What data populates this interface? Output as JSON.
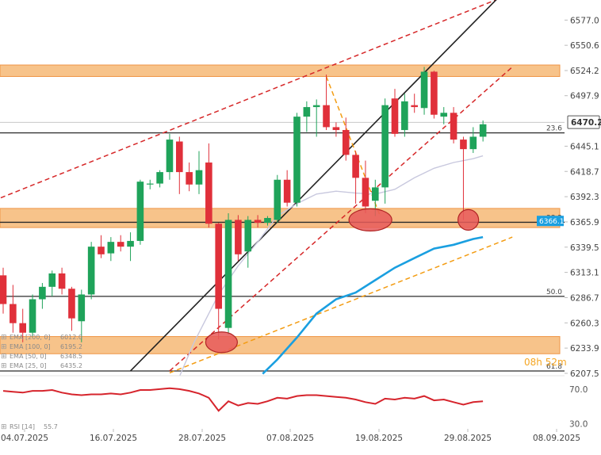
{
  "chart_data": {
    "type": "candlestick",
    "title": "",
    "price_axis": {
      "ticks": [
        "6577.0",
        "6550.6",
        "6524.2",
        "6497.9",
        "6445.1",
        "6418.7",
        "6392.3",
        "6365.9",
        "6339.5",
        "6313.1",
        "6286.7",
        "6260.3",
        "6233.9",
        "6207.5"
      ],
      "last_price": "6470.2",
      "range": [
        6205,
        6598
      ]
    },
    "date_axis": {
      "ticks": [
        "04.07.2025",
        "16.07.2025",
        "28.07.2025",
        "07.08.2025",
        "19.08.2025",
        "29.08.2025",
        "08.09.2025"
      ]
    },
    "candles": [
      {
        "o": 6310,
        "h": 6318,
        "l": 6270,
        "c": 6280
      },
      {
        "o": 6280,
        "h": 6300,
        "l": 6250,
        "c": 6260
      },
      {
        "o": 6260,
        "h": 6275,
        "l": 6240,
        "c": 6250
      },
      {
        "o": 6250,
        "h": 6290,
        "l": 6245,
        "c": 6285
      },
      {
        "o": 6285,
        "h": 6302,
        "l": 6275,
        "c": 6298
      },
      {
        "o": 6298,
        "h": 6315,
        "l": 6288,
        "c": 6312
      },
      {
        "o": 6312,
        "h": 6318,
        "l": 6290,
        "c": 6296
      },
      {
        "o": 6296,
        "h": 6298,
        "l": 6252,
        "c": 6265
      },
      {
        "o": 6262,
        "h": 6295,
        "l": 6240,
        "c": 6290
      },
      {
        "o": 6290,
        "h": 6345,
        "l": 6285,
        "c": 6340
      },
      {
        "o": 6340,
        "h": 6352,
        "l": 6328,
        "c": 6332
      },
      {
        "o": 6333,
        "h": 6350,
        "l": 6325,
        "c": 6345
      },
      {
        "o": 6345,
        "h": 6352,
        "l": 6335,
        "c": 6340
      },
      {
        "o": 6340,
        "h": 6355,
        "l": 6325,
        "c": 6346
      },
      {
        "o": 6346,
        "h": 6410,
        "l": 6342,
        "c": 6408
      },
      {
        "o": 6405,
        "h": 6410,
        "l": 6400,
        "c": 6406
      },
      {
        "o": 6406,
        "h": 6420,
        "l": 6402,
        "c": 6418
      },
      {
        "o": 6418,
        "h": 6458,
        "l": 6410,
        "c": 6452
      },
      {
        "o": 6450,
        "h": 6455,
        "l": 6395,
        "c": 6418
      },
      {
        "o": 6418,
        "h": 6428,
        "l": 6398,
        "c": 6405
      },
      {
        "o": 6405,
        "h": 6440,
        "l": 6395,
        "c": 6420
      },
      {
        "o": 6428,
        "h": 6448,
        "l": 6360,
        "c": 6364
      },
      {
        "o": 6364,
        "h": 6365,
        "l": 6243,
        "c": 6275
      },
      {
        "o": 6255,
        "h": 6375,
        "l": 6248,
        "c": 6368
      },
      {
        "o": 6368,
        "h": 6373,
        "l": 6325,
        "c": 6332
      },
      {
        "o": 6335,
        "h": 6372,
        "l": 6318,
        "c": 6368
      },
      {
        "o": 6368,
        "h": 6373,
        "l": 6360,
        "c": 6365
      },
      {
        "o": 6365,
        "h": 6372,
        "l": 6362,
        "c": 6370
      },
      {
        "o": 6368,
        "h": 6415,
        "l": 6365,
        "c": 6410
      },
      {
        "o": 6410,
        "h": 6420,
        "l": 6382,
        "c": 6386
      },
      {
        "o": 6386,
        "h": 6480,
        "l": 6382,
        "c": 6476
      },
      {
        "o": 6476,
        "h": 6492,
        "l": 6460,
        "c": 6486
      },
      {
        "o": 6486,
        "h": 6494,
        "l": 6455,
        "c": 6488
      },
      {
        "o": 6488,
        "h": 6520,
        "l": 6462,
        "c": 6465
      },
      {
        "o": 6465,
        "h": 6470,
        "l": 6455,
        "c": 6462
      },
      {
        "o": 6462,
        "h": 6475,
        "l": 6430,
        "c": 6436
      },
      {
        "o": 6436,
        "h": 6440,
        "l": 6385,
        "c": 6412
      },
      {
        "o": 6412,
        "h": 6430,
        "l": 6375,
        "c": 6382
      },
      {
        "o": 6388,
        "h": 6410,
        "l": 6372,
        "c": 6402
      },
      {
        "o": 6402,
        "h": 6495,
        "l": 6385,
        "c": 6488
      },
      {
        "o": 6495,
        "h": 6505,
        "l": 6455,
        "c": 6458
      },
      {
        "o": 6462,
        "h": 6500,
        "l": 6455,
        "c": 6492
      },
      {
        "o": 6488,
        "h": 6500,
        "l": 6480,
        "c": 6486
      },
      {
        "o": 6485,
        "h": 6528,
        "l": 6478,
        "c": 6523
      },
      {
        "o": 6523,
        "h": 6524,
        "l": 6474,
        "c": 6478
      },
      {
        "o": 6476,
        "h": 6486,
        "l": 6468,
        "c": 6480
      },
      {
        "o": 6480,
        "h": 6486,
        "l": 6448,
        "c": 6452
      },
      {
        "o": 6452,
        "h": 6455,
        "l": 6368,
        "c": 6442
      },
      {
        "o": 6442,
        "h": 6465,
        "l": 6438,
        "c": 6455
      },
      {
        "o": 6455,
        "h": 6472,
        "l": 6450,
        "c": 6468
      }
    ],
    "zones": [
      {
        "from": 6518,
        "to": 6530
      },
      {
        "from": 6360,
        "to": 6380
      },
      {
        "from": 6228,
        "to": 6246
      }
    ],
    "horizontal_levels": [
      {
        "price": 6470,
        "label": ""
      },
      {
        "price": 6459,
        "label": "23.6"
      },
      {
        "price": 6365.5,
        "label": "38.2"
      },
      {
        "price": 6288,
        "label": "50.0"
      },
      {
        "price": 6210,
        "label": "61.8"
      }
    ],
    "level_price_tag": "6366.1",
    "corner_label": "08h 52m",
    "ema": [
      {
        "name": "EMA [200, 0]",
        "value": "6012.0",
        "color": "#c3c3dc"
      },
      {
        "name": "EMA [100, 0]",
        "value": "6195.2",
        "color": "#d7d7e4"
      },
      {
        "name": "EMA [50, 0]",
        "value": "6348.5",
        "color": "#1a9fe0"
      },
      {
        "name": "EMA [25, 0]",
        "value": "6435.2",
        "color": "#c6c6dc"
      }
    ],
    "ema_lines": {
      "light": [
        [
          17,
          6180
        ],
        [
          19.5,
          6240
        ],
        [
          22,
          6290
        ],
        [
          24,
          6320
        ],
        [
          26,
          6345
        ],
        [
          28,
          6372
        ],
        [
          30,
          6385
        ],
        [
          32,
          6395
        ],
        [
          34,
          6398
        ],
        [
          36,
          6396
        ],
        [
          38,
          6395
        ],
        [
          40,
          6400
        ],
        [
          42,
          6412
        ],
        [
          44,
          6422
        ],
        [
          46,
          6428
        ],
        [
          48,
          6432
        ],
        [
          49,
          6435
        ]
      ],
      "blue": [
        [
          26.5,
          6207
        ],
        [
          28,
          6222
        ],
        [
          30,
          6245
        ],
        [
          32,
          6270
        ],
        [
          34,
          6285
        ],
        [
          36,
          6292
        ],
        [
          38,
          6305
        ],
        [
          40,
          6318
        ],
        [
          42,
          6328
        ],
        [
          44,
          6338
        ],
        [
          46,
          6342
        ],
        [
          48,
          6348
        ],
        [
          49,
          6350
        ]
      ]
    },
    "trendlines": [
      {
        "style": "dashed",
        "color": "#d62728",
        "from": [
          -1,
          6388
        ],
        "to": [
          52,
          6605
        ]
      },
      {
        "style": "solid",
        "color": "#222222",
        "from": [
          13,
          6210
        ],
        "to": [
          51,
          6605
        ]
      },
      {
        "style": "dashed",
        "color": "#d62728",
        "from": [
          17,
          6210
        ],
        "to": [
          52,
          6528
        ]
      },
      {
        "style": "dashed",
        "color": "#f39c12",
        "from": [
          17,
          6208
        ],
        "to": [
          52,
          6350
        ]
      },
      {
        "style": "dashed",
        "color": "#f39c12",
        "from": [
          33,
          6518
        ],
        "to": [
          38.5,
          6372
        ]
      }
    ],
    "highlight_circles": [
      {
        "i": 22.3,
        "price": 6240
      },
      {
        "i": 37.5,
        "price": 6368
      },
      {
        "i": 47.5,
        "price": 6368
      }
    ],
    "rsi": {
      "label": "RSI [14]",
      "value": "55.7",
      "ticks": [
        "70.0",
        "30.0"
      ],
      "range": [
        25,
        80
      ],
      "values": [
        68,
        67,
        66,
        68,
        68,
        69,
        66,
        64,
        63,
        64,
        64,
        65,
        64,
        66,
        69,
        69,
        70,
        71,
        70,
        68,
        65,
        60,
        45,
        56,
        51,
        54,
        53,
        56,
        60,
        59,
        62,
        63,
        63,
        62,
        61,
        60,
        58,
        55,
        53,
        59,
        58,
        60,
        59,
        62,
        57,
        58,
        55,
        52,
        55,
        56
      ]
    },
    "colors": {
      "up": "#1fa35a",
      "down": "#e0303a",
      "zone": "#f6b876",
      "zone_border": "#ef9546"
    }
  }
}
